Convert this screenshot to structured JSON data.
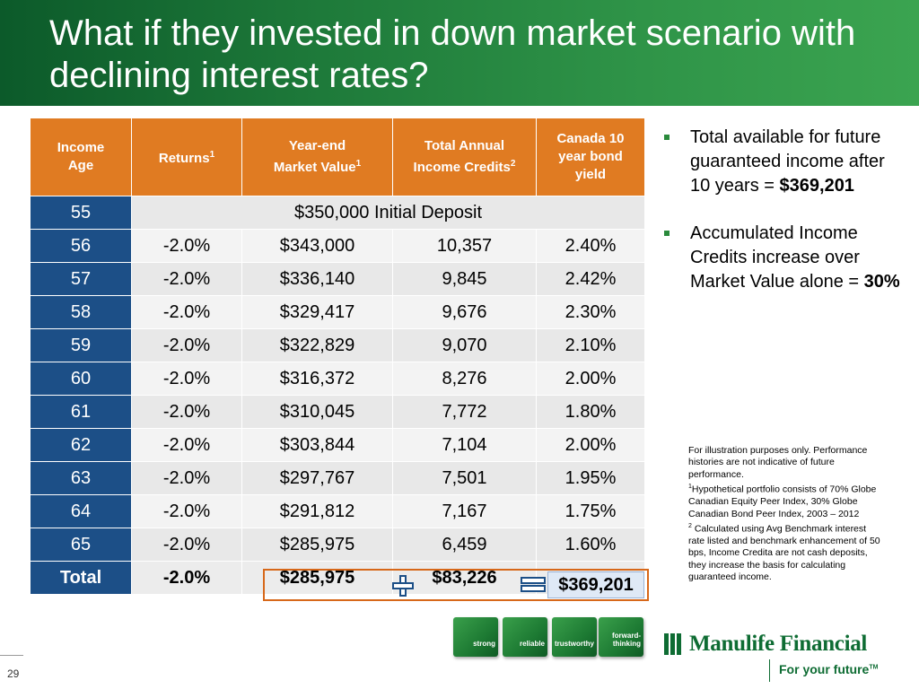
{
  "title": "What if they invested in down market scenario with declining interest rates?",
  "table": {
    "headers": {
      "age": [
        "Income",
        "Age"
      ],
      "returns": "Returns",
      "returns_sup": "1",
      "market_value": [
        "Year-end",
        "Market Value"
      ],
      "market_value_sup": "1",
      "income_credits": [
        "Total Annual",
        "Income Credits"
      ],
      "income_credits_sup": "2",
      "bond_yield": [
        "Canada 10",
        "year bond",
        "yield"
      ]
    },
    "initial_row": {
      "age": "55",
      "deposit": "$350,000 Initial Deposit"
    },
    "rows": [
      {
        "age": "56",
        "returns": "-2.0%",
        "market_value": "$343,000",
        "income_credits": "10,357",
        "bond_yield": "2.40%"
      },
      {
        "age": "57",
        "returns": "-2.0%",
        "market_value": "$336,140",
        "income_credits": "9,845",
        "bond_yield": "2.42%"
      },
      {
        "age": "58",
        "returns": "-2.0%",
        "market_value": "$329,417",
        "income_credits": "9,676",
        "bond_yield": "2.30%"
      },
      {
        "age": "59",
        "returns": "-2.0%",
        "market_value": "$322,829",
        "income_credits": "9,070",
        "bond_yield": "2.10%"
      },
      {
        "age": "60",
        "returns": "-2.0%",
        "market_value": "$316,372",
        "income_credits": "8,276",
        "bond_yield": "2.00%"
      },
      {
        "age": "61",
        "returns": "-2.0%",
        "market_value": "$310,045",
        "income_credits": "7,772",
        "bond_yield": "1.80%"
      },
      {
        "age": "62",
        "returns": "-2.0%",
        "market_value": "$303,844",
        "income_credits": "7,104",
        "bond_yield": "2.00%"
      },
      {
        "age": "63",
        "returns": "-2.0%",
        "market_value": "$297,767",
        "income_credits": "7,501",
        "bond_yield": "1.95%"
      },
      {
        "age": "64",
        "returns": "-2.0%",
        "market_value": "$291,812",
        "income_credits": "7,167",
        "bond_yield": "1.75%"
      },
      {
        "age": "65",
        "returns": "-2.0%",
        "market_value": "$285,975",
        "income_credits": "6,459",
        "bond_yield": "1.60%"
      }
    ],
    "total_row": {
      "label": "Total",
      "returns": "-2.0%",
      "market_value": "$285,975",
      "income_credits": "$83,226",
      "grand_total": "$369,201"
    }
  },
  "bullets": [
    {
      "text": "Total available for future guaranteed income after 10 years = ",
      "bold": "$369,201"
    },
    {
      "text": "Accumulated Income Credits increase over Market Value alone = ",
      "bold": "30%"
    }
  ],
  "footnote": {
    "line1": "For illustration purposes only. Performance histories are not indicative of future performance.",
    "sup1": "1",
    "line2": "Hypothetical portfolio consists of 70% Globe Canadian Equity Peer Index, 30% Globe Canadian Bond Peer Index, 2003 – 2012",
    "sup2": "2",
    "line3": " Calculated using Avg Benchmark interest rate listed and benchmark enhancement of 50 bps, Income Credita are not cash deposits, they increase the basis for calculating guaranteed income."
  },
  "cubes": [
    "strong",
    "reliable",
    "trustworthy",
    "forward-thinking"
  ],
  "cube_lines": {
    "strong": [
      "strong"
    ],
    "reliable": [
      "reliable"
    ],
    "trustworthy": [
      "trustworthy"
    ],
    "forward": [
      "forward-",
      "thinking"
    ]
  },
  "brand": {
    "name": "Manulife Financial",
    "tagline": "For your future",
    "tagline_mark": "TM",
    "color": "#0e6c33"
  },
  "accent_colors": {
    "header_orange": "#e07b22",
    "age_blue": "#1c4f87",
    "title_green": "#1e7a3a"
  },
  "page_number": "29"
}
